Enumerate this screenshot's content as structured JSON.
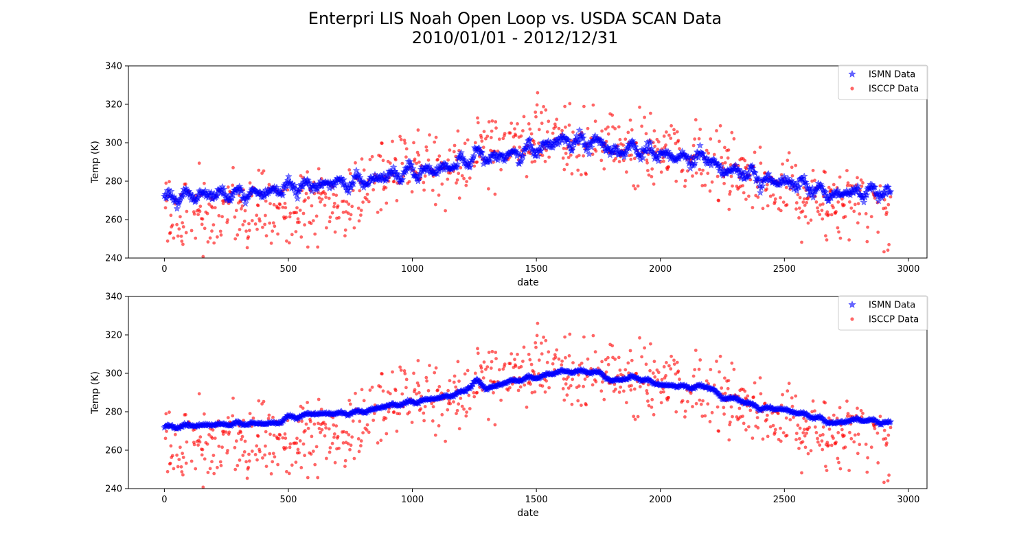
{
  "figure": {
    "title_line1": "Enterpri LIS Noah Open Loop vs. USDA SCAN Data",
    "title_line2": "2010/01/01 - 2012/12/31"
  },
  "chart_data": [
    {
      "type": "scatter",
      "xlabel": "date",
      "ylabel": "Temp (K)",
      "xlim": [
        -145,
        3075
      ],
      "ylim": [
        240,
        340
      ],
      "xticks": [
        0,
        500,
        1000,
        1500,
        2000,
        2500,
        3000
      ],
      "yticks": [
        240,
        260,
        280,
        300,
        320,
        340
      ],
      "legend_position": "upper-right",
      "grid": false,
      "series": [
        {
          "name": "ISMN Data",
          "marker": "star",
          "color": "#0000ff",
          "x_range": [
            0,
            2930
          ],
          "trend_x": [
            0,
            150,
            400,
            500,
            700,
            800,
            900,
            1000,
            1100,
            1200,
            1270,
            1300,
            1400,
            1500,
            1600,
            1700,
            1760,
            1800,
            1900,
            2000,
            2100,
            2200,
            2250,
            2300,
            2400,
            2500,
            2600,
            2700,
            2800,
            2930
          ],
          "trend_y": [
            271,
            273,
            274,
            277,
            279,
            279,
            283,
            285,
            286,
            289,
            295,
            291,
            294,
            297,
            301,
            300,
            300,
            295,
            297,
            294,
            292,
            292,
            285,
            286,
            281,
            280,
            277,
            273,
            275,
            274
          ],
          "spread_amplitude": 6
        },
        {
          "name": "ISCCP Data",
          "marker": "circle",
          "color": "#ff0000",
          "x_range": [
            0,
            2930
          ],
          "trend_x": [
            0,
            100,
            200,
            300,
            400,
            500,
            600,
            700,
            800,
            900,
            1000,
            1100,
            1200,
            1300,
            1400,
            1500,
            1600,
            1700,
            1800,
            1900,
            2000,
            2100,
            2200,
            2300,
            2400,
            2500,
            2600,
            2700,
            2800,
            2930
          ],
          "trend_y": [
            264,
            264,
            262,
            264,
            268,
            264,
            268,
            268,
            276,
            284,
            286,
            288,
            290,
            295,
            300,
            302,
            302,
            300,
            298,
            296,
            293,
            292,
            290,
            285,
            280,
            276,
            270,
            268,
            268,
            264
          ],
          "spread_amplitude": 20
        }
      ]
    },
    {
      "type": "scatter",
      "xlabel": "date",
      "ylabel": "Temp (K)",
      "xlim": [
        -145,
        3075
      ],
      "ylim": [
        240,
        340
      ],
      "xticks": [
        0,
        500,
        1000,
        1500,
        2000,
        2500,
        3000
      ],
      "yticks": [
        240,
        260,
        280,
        300,
        320,
        340
      ],
      "legend_position": "upper-right",
      "grid": false,
      "series": [
        {
          "name": "ISMN Data",
          "marker": "star",
          "color": "#0000ff",
          "x_range": [
            0,
            2930
          ],
          "trend_x": [
            0,
            150,
            400,
            450,
            500,
            600,
            700,
            800,
            900,
            1000,
            1100,
            1200,
            1260,
            1300,
            1400,
            1500,
            1600,
            1700,
            1760,
            1800,
            1900,
            2000,
            2100,
            2200,
            2250,
            2300,
            2400,
            2500,
            2600,
            2700,
            2800,
            2930
          ],
          "trend_y": [
            272,
            273,
            274,
            274,
            277,
            279,
            279,
            280,
            283,
            285,
            287,
            290,
            296,
            292,
            296,
            298,
            301,
            301,
            300,
            296,
            298,
            294,
            293,
            293,
            287,
            287,
            282,
            281,
            278,
            274,
            276,
            274
          ],
          "spread_amplitude": 1.5
        },
        {
          "name": "ISCCP Data",
          "marker": "circle",
          "color": "#ff0000",
          "x_range": [
            0,
            2930
          ],
          "trend_x": [
            0,
            100,
            200,
            300,
            400,
            500,
            600,
            700,
            800,
            900,
            1000,
            1100,
            1200,
            1300,
            1400,
            1500,
            1600,
            1700,
            1800,
            1900,
            2000,
            2100,
            2200,
            2300,
            2400,
            2500,
            2600,
            2700,
            2800,
            2930
          ],
          "trend_y": [
            264,
            264,
            262,
            264,
            268,
            264,
            268,
            268,
            276,
            284,
            286,
            288,
            290,
            295,
            300,
            302,
            302,
            300,
            298,
            296,
            293,
            292,
            290,
            285,
            280,
            276,
            270,
            268,
            268,
            264
          ],
          "spread_amplitude": 20
        }
      ]
    }
  ]
}
